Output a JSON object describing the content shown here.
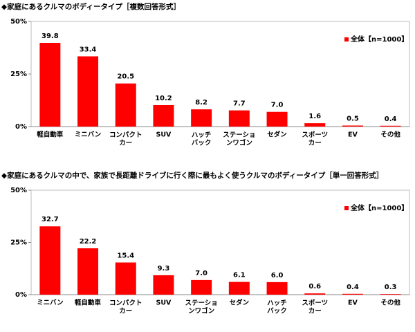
{
  "chart_data": [
    {
      "type": "bar",
      "title": "◆家庭にあるクルマのボディータイプ［複数回答形式］",
      "categories": [
        "軽自動車",
        "ミニバン",
        "コンパクト\nカー",
        "SUV",
        "ハッチ\nバック",
        "ステーショ\nンワゴン",
        "セダン",
        "スポーツ\nカー",
        "EV",
        "その他"
      ],
      "series": [
        {
          "name": "全体【n=1000】",
          "color": "#ff0000",
          "values": [
            39.8,
            33.4,
            20.5,
            10.2,
            8.2,
            7.7,
            7.0,
            1.6,
            0.5,
            0.4
          ],
          "value_labels": [
            "39.8",
            "33.4",
            "20.5",
            "10.2",
            "8.2",
            "7.7",
            "7.0",
            "1.6",
            "0.5",
            "0.4"
          ]
        }
      ],
      "ylim": [
        0,
        50
      ],
      "yticks": [
        {
          "value": 0,
          "label": "0%"
        },
        {
          "value": 25,
          "label": "25%"
        },
        {
          "value": 50,
          "label": "50%"
        }
      ],
      "legend": "top-right"
    },
    {
      "type": "bar",
      "title": "◆家庭にあるクルマの中で、家族で長距離ドライブに行く際に最もよく使うクルマのボディータイプ［単一回答形式］",
      "categories": [
        "ミニバン",
        "軽自動車",
        "コンパクト\nカー",
        "SUV",
        "ステーショ\nンワゴン",
        "セダン",
        "ハッチ\nバック",
        "スポーツ\nカー",
        "EV",
        "その他"
      ],
      "series": [
        {
          "name": "全体【n=1000】",
          "color": "#ff0000",
          "values": [
            32.7,
            22.2,
            15.4,
            9.3,
            7.0,
            6.1,
            6.0,
            0.6,
            0.4,
            0.3
          ],
          "value_labels": [
            "32.7",
            "22.2",
            "15.4",
            "9.3",
            "7.0",
            "6.1",
            "6.0",
            "0.6",
            "0.4",
            "0.3"
          ]
        }
      ],
      "ylim": [
        0,
        50
      ],
      "yticks": [
        {
          "value": 0,
          "label": "0%"
        },
        {
          "value": 25,
          "label": "25%"
        },
        {
          "value": 50,
          "label": "50%"
        }
      ],
      "legend": "top-right"
    }
  ]
}
